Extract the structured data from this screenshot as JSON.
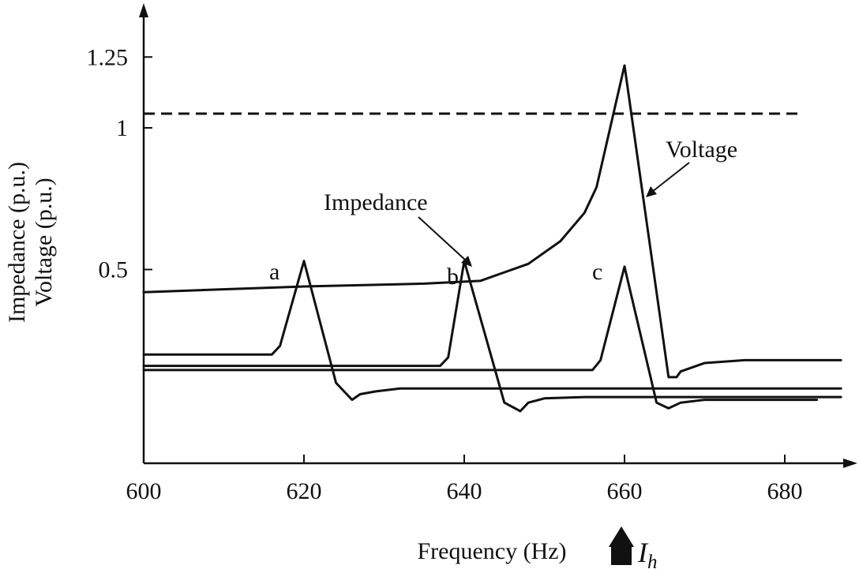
{
  "chart_data": {
    "type": "line",
    "xlabel": "Frequency (Hz)",
    "ylabel_lines": [
      "Impedance (p.u.)",
      "Voltage (p.u.)"
    ],
    "xlim": [
      600,
      687
    ],
    "ylim": [
      -0.2,
      1.25
    ],
    "xticks": [
      600,
      620,
      640,
      660,
      680
    ],
    "yticks": [
      {
        "value": 0.5,
        "label": "0.5"
      },
      {
        "value": 1.0,
        "label": "1"
      },
      {
        "value": 1.25,
        "label": "1.25"
      }
    ],
    "reference_line": {
      "y": 1.05,
      "x_range": [
        600,
        682
      ],
      "style": "dashed"
    },
    "series": [
      {
        "name": "Voltage",
        "points": [
          [
            600,
            0.42
          ],
          [
            620,
            0.44
          ],
          [
            635,
            0.45
          ],
          [
            642,
            0.46
          ],
          [
            648,
            0.52
          ],
          [
            652,
            0.6
          ],
          [
            655,
            0.7
          ],
          [
            656.5,
            0.79
          ],
          [
            660,
            1.22
          ],
          [
            665.5,
            0.12
          ],
          [
            666.5,
            0.12
          ],
          [
            667,
            0.14
          ],
          [
            670,
            0.17
          ],
          [
            675,
            0.18
          ],
          [
            687,
            0.18
          ]
        ]
      },
      {
        "name": "a",
        "points": [
          [
            600,
            0.2
          ],
          [
            616,
            0.2
          ],
          [
            617,
            0.23
          ],
          [
            620,
            0.53
          ],
          [
            624,
            0.1
          ],
          [
            626,
            0.04
          ],
          [
            627,
            0.06
          ],
          [
            629,
            0.07
          ],
          [
            632,
            0.08
          ],
          [
            687,
            0.08
          ]
        ]
      },
      {
        "name": "b",
        "points": [
          [
            600,
            0.16
          ],
          [
            637,
            0.16
          ],
          [
            638,
            0.19
          ],
          [
            640,
            0.53
          ],
          [
            645,
            0.03
          ],
          [
            647,
            0.0
          ],
          [
            648,
            0.03
          ],
          [
            650,
            0.045
          ],
          [
            655,
            0.05
          ],
          [
            687,
            0.05
          ]
        ]
      },
      {
        "name": "c",
        "points": [
          [
            600,
            0.145
          ],
          [
            656,
            0.145
          ],
          [
            657,
            0.18
          ],
          [
            660,
            0.51
          ],
          [
            664,
            0.03
          ],
          [
            665.5,
            0.01
          ],
          [
            667,
            0.03
          ],
          [
            670,
            0.04
          ],
          [
            684,
            0.04
          ]
        ]
      }
    ],
    "annotations": {
      "voltage_label": "Voltage",
      "impedance_label": "Impedance",
      "peak_labels": [
        "a",
        "b",
        "c"
      ],
      "current_label": "I",
      "current_subscript": "h"
    }
  }
}
